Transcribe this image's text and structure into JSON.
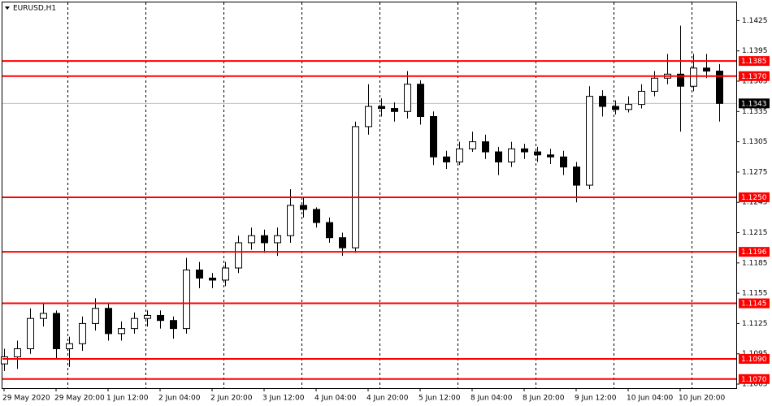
{
  "chart_data": {
    "type": "candlestick",
    "title": "EURUSD,H1",
    "categories": [
      "29 May 2020",
      null,
      null,
      null,
      "29 May 20:00",
      null,
      null,
      null,
      "1 Jun 12:00",
      null,
      null,
      null,
      "2 Jun 04:00",
      null,
      null,
      null,
      "2 Jun 20:00",
      null,
      null,
      null,
      "3 Jun 12:00",
      null,
      null,
      null,
      "4 Jun 04:00",
      null,
      null,
      null,
      "4 Jun 20:00",
      null,
      null,
      null,
      "5 Jun 12:00",
      null,
      null,
      null,
      "8 Jun 04:00",
      null,
      null,
      null,
      "8 Jun 20:00",
      null,
      null,
      null,
      "9 Jun 12:00",
      null,
      null,
      null,
      "10 Jun 04:00",
      null,
      null,
      null,
      "10 Jun 20:00",
      null,
      null,
      null
    ],
    "open": [
      1.1085,
      1.1092,
      1.11,
      1.113,
      1.1135,
      1.11,
      1.1105,
      1.1125,
      1.114,
      1.1115,
      1.112,
      1.113,
      1.1133,
      1.1128,
      1.112,
      1.1178,
      1.117,
      1.1168,
      1.118,
      1.1205,
      1.1212,
      1.1205,
      1.1212,
      1.1242,
      1.1238,
      1.1225,
      1.121,
      1.12,
      1.132,
      1.134,
      1.1338,
      1.1335,
      1.1362,
      1.133,
      1.129,
      1.1285,
      1.1298,
      1.1305,
      1.1295,
      1.1285,
      1.1298,
      1.1295,
      1.1292,
      1.129,
      1.128,
      1.1262,
      1.135,
      1.134,
      1.1337,
      1.1342,
      1.1355,
      1.1368,
      1.1372,
      1.136,
      1.1378,
      1.1375
    ],
    "high": [
      1.11,
      1.1108,
      1.114,
      1.1145,
      1.1138,
      1.1112,
      1.1132,
      1.115,
      1.1145,
      1.1127,
      1.1136,
      1.1138,
      1.1138,
      1.1132,
      1.119,
      1.1186,
      1.1175,
      1.1186,
      1.1212,
      1.122,
      1.1218,
      1.122,
      1.1258,
      1.125,
      1.124,
      1.123,
      1.1215,
      1.1325,
      1.1362,
      1.1348,
      1.1344,
      1.1375,
      1.1366,
      1.1335,
      1.1296,
      1.1305,
      1.1315,
      1.1312,
      1.13,
      1.1305,
      1.1303,
      1.13,
      1.1298,
      1.1296,
      1.1285,
      1.136,
      1.1356,
      1.1346,
      1.135,
      1.1362,
      1.1375,
      1.1392,
      1.142,
      1.1392,
      1.1392,
      1.1382
    ],
    "low": [
      1.1078,
      1.108,
      1.1095,
      1.1122,
      1.109,
      1.1082,
      1.1098,
      1.1118,
      1.1108,
      1.1108,
      1.1115,
      1.1122,
      1.112,
      1.111,
      1.1115,
      1.116,
      1.116,
      1.1162,
      1.1175,
      1.1198,
      1.1195,
      1.1192,
      1.1205,
      1.123,
      1.122,
      1.1205,
      1.1192,
      1.1195,
      1.1312,
      1.133,
      1.1325,
      1.1328,
      1.1322,
      1.1282,
      1.1278,
      1.1282,
      1.1295,
      1.1288,
      1.1272,
      1.128,
      1.1288,
      1.1285,
      1.1283,
      1.1272,
      1.1245,
      1.1258,
      1.133,
      1.1332,
      1.1334,
      1.1338,
      1.135,
      1.1362,
      1.1315,
      1.1355,
      1.1368,
      1.1325
    ],
    "close": [
      1.1092,
      1.11,
      1.113,
      1.1135,
      1.11,
      1.1105,
      1.1125,
      1.114,
      1.1115,
      1.112,
      1.113,
      1.1133,
      1.1128,
      1.112,
      1.1178,
      1.117,
      1.1168,
      1.118,
      1.1205,
      1.1212,
      1.1205,
      1.1212,
      1.1242,
      1.1238,
      1.1225,
      1.121,
      1.12,
      1.132,
      1.134,
      1.1338,
      1.1335,
      1.1362,
      1.133,
      1.129,
      1.1285,
      1.1298,
      1.1305,
      1.1295,
      1.1285,
      1.1298,
      1.1295,
      1.1292,
      1.129,
      1.128,
      1.1262,
      1.135,
      1.134,
      1.1337,
      1.1342,
      1.1355,
      1.1368,
      1.1372,
      1.136,
      1.1378,
      1.1375,
      1.1343
    ],
    "ylim": [
      1.1061,
      1.1443
    ],
    "yticks": [
      1.1425,
      1.1395,
      1.1365,
      1.1335,
      1.1305,
      1.1275,
      1.1245,
      1.1215,
      1.1185,
      1.1155,
      1.1125,
      1.1095,
      1.1065
    ],
    "levels": [
      1.1385,
      {
        "value": 1.137,
        "label": "1.1370"
      },
      {
        "value": 1.125,
        "label": "1.1250"
      },
      1.1196,
      1.1145,
      {
        "value": 1.109,
        "label": "1.1090"
      },
      {
        "value": 1.107,
        "label": "1.1070"
      }
    ],
    "level_color": "#ff0000",
    "current_price": 1.1343,
    "grid": true
  }
}
